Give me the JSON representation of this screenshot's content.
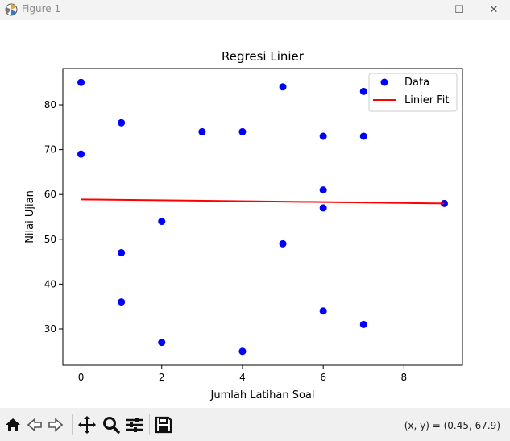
{
  "window": {
    "title": "Figure 1",
    "minimize_glyph": "—",
    "maximize_glyph": "☐",
    "close_glyph": "✕"
  },
  "toolbar": {
    "icons": [
      "home-icon",
      "back-icon",
      "forward-icon",
      "pan-icon",
      "zoom-icon",
      "configure-subplots-icon",
      "save-icon"
    ],
    "coords_text": "(x, y) = (0.45, 67.9)"
  },
  "chart_data": {
    "type": "scatter",
    "title": "Regresi Linier",
    "xlabel": "Jumlah Latihan Soal",
    "ylabel": "Nilai Ujian",
    "xlim": [
      -0.45,
      9.45
    ],
    "ylim": [
      21.9,
      88.1
    ],
    "xticks": [
      0,
      2,
      4,
      6,
      8
    ],
    "yticks": [
      30,
      40,
      50,
      60,
      70,
      80
    ],
    "grid": false,
    "legend_position": "top-right",
    "colors": {
      "data": "#0000ff",
      "fit": "#ff0000"
    },
    "series": [
      {
        "name": "Data",
        "kind": "scatter",
        "points": [
          [
            0,
            85
          ],
          [
            0,
            69
          ],
          [
            1,
            76
          ],
          [
            1,
            47
          ],
          [
            1,
            36
          ],
          [
            2,
            54
          ],
          [
            2,
            27
          ],
          [
            3,
            74
          ],
          [
            4,
            74
          ],
          [
            4,
            25
          ],
          [
            5,
            84
          ],
          [
            5,
            49
          ],
          [
            6,
            73
          ],
          [
            6,
            61
          ],
          [
            6,
            57
          ],
          [
            6,
            34
          ],
          [
            7,
            83
          ],
          [
            7,
            73
          ],
          [
            7,
            31
          ],
          [
            9,
            58
          ]
        ]
      },
      {
        "name": "Linier Fit",
        "kind": "line",
        "points": [
          [
            0,
            58.9
          ],
          [
            9,
            58.0
          ]
        ]
      }
    ]
  }
}
